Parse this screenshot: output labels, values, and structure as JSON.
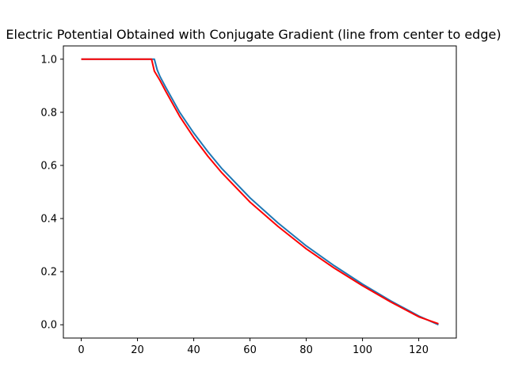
{
  "chart_data": {
    "type": "line",
    "title": "Electric Potential Obtained with Conjugate Gradient (line from center to edge)",
    "xlabel": "",
    "ylabel": "",
    "xlim": [
      -6.35,
      133.35
    ],
    "ylim": [
      -0.05,
      1.05
    ],
    "xticks": [
      0,
      20,
      40,
      60,
      80,
      100,
      120
    ],
    "yticks": [
      0.0,
      0.2,
      0.4,
      0.6,
      0.8,
      1.0
    ],
    "xtick_labels": [
      "0",
      "20",
      "40",
      "60",
      "80",
      "100",
      "120"
    ],
    "ytick_labels": [
      "0.0",
      "0.2",
      "0.4",
      "0.6",
      "0.8",
      "1.0"
    ],
    "grid": false,
    "series": [
      {
        "color": "#1f77b4",
        "x": [
          0,
          26,
          27,
          28,
          30,
          35,
          40,
          45,
          50,
          60,
          70,
          80,
          90,
          100,
          110,
          120,
          127
        ],
        "y": [
          1.0,
          1.0,
          0.96,
          0.935,
          0.895,
          0.8,
          0.722,
          0.652,
          0.588,
          0.478,
          0.383,
          0.297,
          0.222,
          0.153,
          0.09,
          0.033,
          0.0
        ]
      },
      {
        "color": "#ff0000",
        "x": [
          0,
          25,
          26,
          28,
          30,
          35,
          40,
          45,
          50,
          60,
          70,
          80,
          90,
          100,
          110,
          120,
          127
        ],
        "y": [
          1.0,
          1.0,
          0.955,
          0.92,
          0.88,
          0.785,
          0.705,
          0.635,
          0.572,
          0.462,
          0.37,
          0.286,
          0.213,
          0.147,
          0.086,
          0.03,
          0.004
        ]
      }
    ]
  }
}
